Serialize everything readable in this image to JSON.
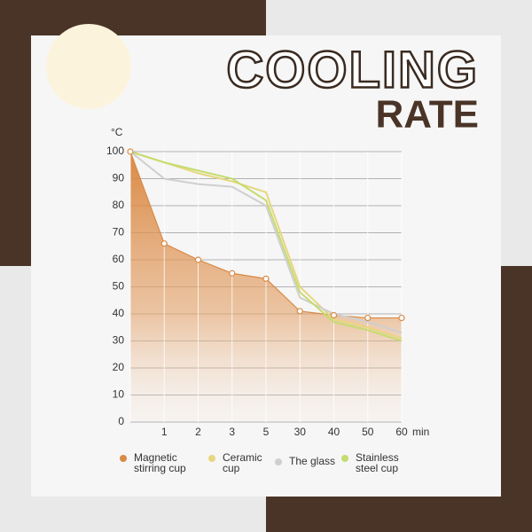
{
  "chart_data": {
    "type": "line",
    "title": "COOLING",
    "subtitle": "RATE",
    "y_label": "°C",
    "x_label": "min",
    "categories": [
      null,
      "1",
      "2",
      "3",
      "5",
      "30",
      "40",
      "50",
      "60"
    ],
    "ylim": [
      0,
      100
    ],
    "yticks": [
      0,
      10,
      20,
      30,
      40,
      50,
      60,
      70,
      80,
      90,
      100
    ],
    "grid": true,
    "series": [
      {
        "name": "Magnetic stirring cup",
        "color": "#d98a45",
        "area": true,
        "values": [
          100,
          66,
          60,
          55,
          53,
          41,
          39.5,
          38.5,
          38.5
        ]
      },
      {
        "name": "Ceramic cup",
        "color": "#e6d77e",
        "values": [
          100,
          96,
          92,
          89,
          85,
          50,
          38,
          35,
          31
        ]
      },
      {
        "name": "The glass",
        "color": "#cfcfcf",
        "values": [
          100,
          90,
          88,
          87,
          80,
          46,
          40,
          37,
          33
        ]
      },
      {
        "name": "Stainless steel cup",
        "color": "#c5dc6e",
        "values": [
          100,
          96,
          93,
          90,
          82,
          48,
          37,
          34,
          30
        ]
      }
    ]
  }
}
